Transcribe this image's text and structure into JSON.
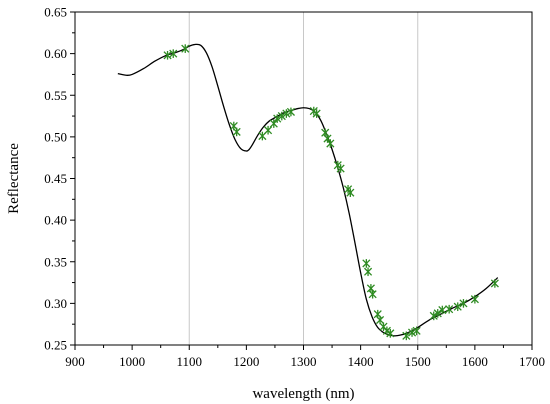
{
  "chart_data": {
    "type": "line",
    "xlabel": "wavelength (nm)",
    "ylabel": "Reflectance",
    "xlim": [
      900,
      1700
    ],
    "ylim": [
      0.25,
      0.65
    ],
    "xticks": [
      900,
      1000,
      1100,
      1200,
      1300,
      1400,
      1500,
      1600,
      1700
    ],
    "yticks": [
      0.25,
      0.3,
      0.35,
      0.4,
      0.45,
      0.5,
      0.55,
      0.6,
      0.65
    ],
    "ytick_labels": [
      "0.25",
      "0.30",
      "0.35",
      "0.40",
      "0.45",
      "0.50",
      "0.55",
      "0.60",
      "0.65"
    ],
    "vertical_gridlines_at": [
      1100,
      1300,
      1500
    ],
    "line_color": "#000000",
    "marker_color": "#2e8b22",
    "series": [
      {
        "kind": "line",
        "x": [
          975,
          990,
          1000,
          1020,
          1040,
          1060,
          1075,
          1090,
          1100,
          1110,
          1120,
          1130,
          1140,
          1150,
          1160,
          1170,
          1180,
          1190,
          1200,
          1205,
          1210,
          1220,
          1230,
          1240,
          1250,
          1260,
          1270,
          1280,
          1290,
          1300,
          1310,
          1320,
          1330,
          1340,
          1350,
          1360,
          1370,
          1380,
          1390,
          1400,
          1410,
          1420,
          1430,
          1440,
          1450,
          1460,
          1470,
          1480,
          1490,
          1500,
          1520,
          1540,
          1560,
          1580,
          1600,
          1620,
          1640
        ],
        "y": [
          0.576,
          0.574,
          0.575,
          0.582,
          0.591,
          0.598,
          0.601,
          0.605,
          0.609,
          0.611,
          0.61,
          0.601,
          0.584,
          0.561,
          0.537,
          0.515,
          0.497,
          0.486,
          0.483,
          0.485,
          0.49,
          0.502,
          0.512,
          0.519,
          0.523,
          0.527,
          0.53,
          0.532,
          0.534,
          0.535,
          0.534,
          0.53,
          0.52,
          0.504,
          0.485,
          0.463,
          0.438,
          0.408,
          0.373,
          0.337,
          0.305,
          0.284,
          0.271,
          0.265,
          0.262,
          0.261,
          0.262,
          0.264,
          0.267,
          0.271,
          0.28,
          0.287,
          0.294,
          0.3,
          0.308,
          0.318,
          0.331
        ]
      },
      {
        "kind": "markers",
        "x": [
          1062,
          1072,
          1093,
          1178,
          1183,
          1228,
          1238,
          1248,
          1254,
          1262,
          1270,
          1278,
          1318,
          1323,
          1338,
          1342,
          1347,
          1360,
          1365,
          1378,
          1382,
          1410,
          1413,
          1418,
          1421,
          1430,
          1434,
          1440,
          1446,
          1452,
          1480,
          1490,
          1498,
          1528,
          1535,
          1543,
          1555,
          1570,
          1580,
          1600,
          1635
        ],
        "y": [
          0.598,
          0.6,
          0.606,
          0.513,
          0.506,
          0.501,
          0.508,
          0.516,
          0.522,
          0.525,
          0.528,
          0.53,
          0.531,
          0.528,
          0.505,
          0.498,
          0.492,
          0.466,
          0.462,
          0.437,
          0.433,
          0.348,
          0.338,
          0.318,
          0.311,
          0.287,
          0.28,
          0.272,
          0.267,
          0.264,
          0.261,
          0.265,
          0.267,
          0.285,
          0.288,
          0.292,
          0.293,
          0.296,
          0.3,
          0.305,
          0.324
        ]
      }
    ]
  }
}
